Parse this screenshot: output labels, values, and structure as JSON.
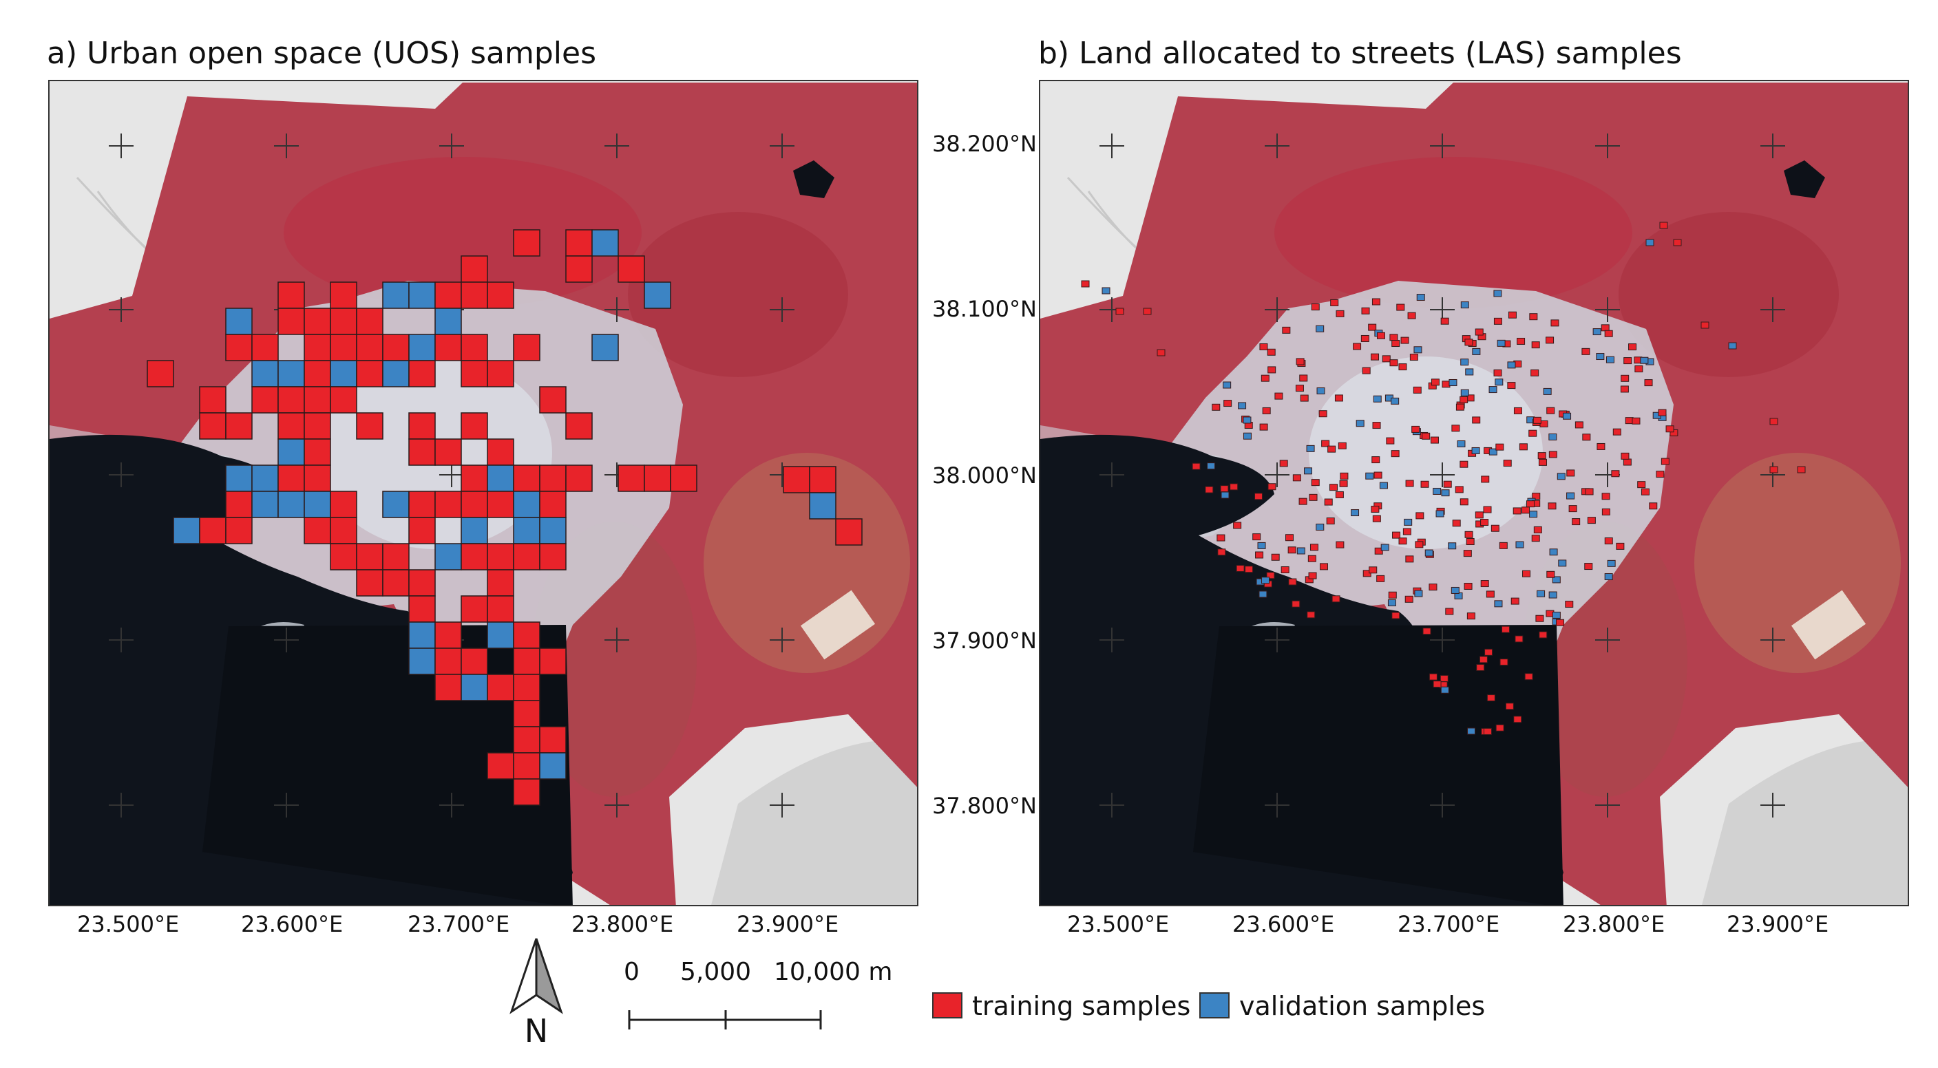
{
  "figure": {
    "panel_a_title": "a) Urban open space (UOS) samples",
    "panel_b_title": "b) Land allocated to streets (LAS) samples",
    "lat_labels": [
      "38.200°N",
      "38.100°N",
      "38.000°N",
      "37.900°N",
      "37.800°N"
    ],
    "lon_labels": [
      "23.500°E",
      "23.600°E",
      "23.700°E",
      "23.800°E",
      "23.900°E"
    ],
    "north_label": "N",
    "scale_labels": [
      "0",
      "5,000",
      "10,000 m"
    ],
    "legend": {
      "training_label": "training samples",
      "validation_label": "validation samples"
    }
  },
  "colors": {
    "training": "#e8232a",
    "validation": "#3c84c4",
    "sea": "#0f141c",
    "land": "#b4404f",
    "urban": "#cfd6de",
    "basemap": "#e6e6e6"
  },
  "map_data": {
    "uos_samples": {
      "training_count": 148,
      "validation_count": 42
    },
    "las_samples": {
      "training_count": 265,
      "validation_count": 67
    }
  }
}
